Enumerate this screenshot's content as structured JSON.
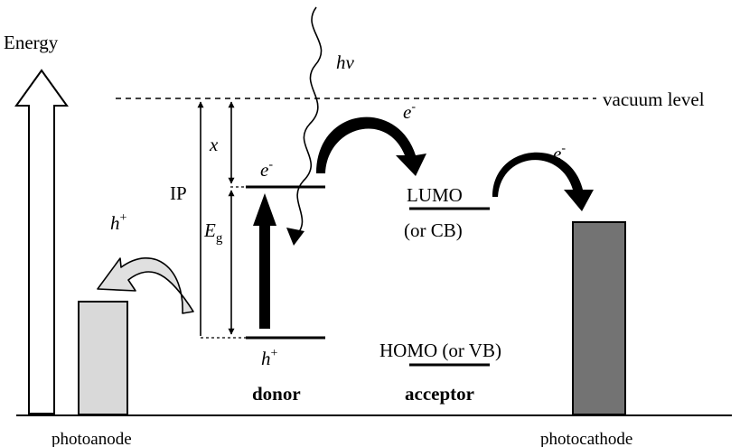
{
  "labels": {
    "energy": "Energy",
    "hv": "hv",
    "vacuum_level": "vacuum level",
    "electron_left": "e",
    "electron_left_sup": "-",
    "electron_mid": "e",
    "electron_mid_sup": "-",
    "electron_right": "e",
    "electron_right_sup": "-",
    "x": "x",
    "ip": "IP",
    "eg_main": "E",
    "eg_sub": "g",
    "hole_left": "h",
    "hole_left_sup": "+",
    "hole_bottom": "h",
    "hole_bottom_sup": "+",
    "lumo": "LUMO",
    "lumo_alt": "(or CB)",
    "homo": "HOMO (or VB)",
    "donor": "donor",
    "acceptor": "acceptor",
    "photoanode": "photoanode",
    "photocathode": "photocathode"
  },
  "colors": {
    "photoanode_fill": "#d9d9d9",
    "photocathode_fill": "#737373",
    "curved_arrow_fill": "#e0e0e0",
    "line": "#000000"
  }
}
